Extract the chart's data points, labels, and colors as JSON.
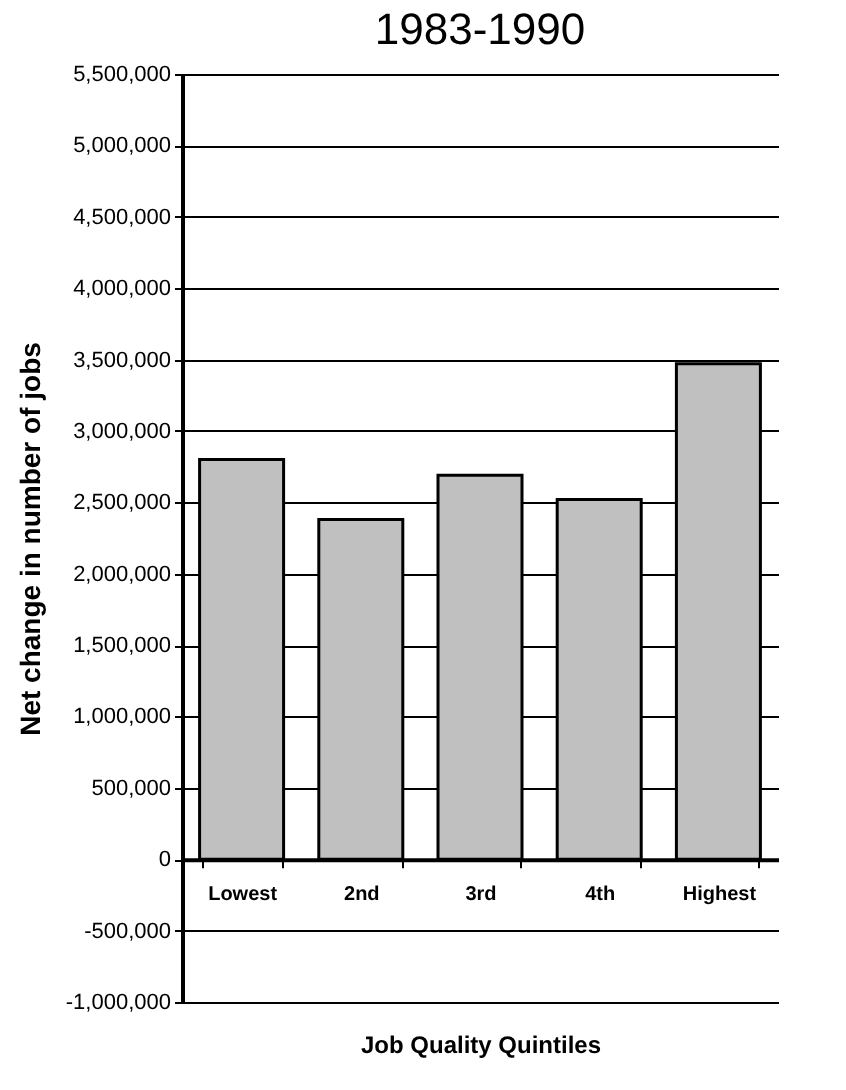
{
  "chart_data": {
    "type": "bar",
    "title": "1983-1990",
    "xlabel": "Job Quality Quintiles",
    "ylabel": "Net change in number of jobs",
    "categories": [
      "Lowest",
      "2nd",
      "3rd",
      "4th",
      "Highest"
    ],
    "values": [
      2800000,
      2380000,
      2690000,
      2520000,
      3470000
    ],
    "color": "#c0c0c0",
    "ylim": [
      -1000000,
      5500000
    ],
    "yticks": [
      {
        "value": -1000000,
        "label": "-1,000,000"
      },
      {
        "value": -500000,
        "label": "-500,000"
      },
      0,
      {
        "value": 500000,
        "label": "500,000"
      },
      {
        "value": 1000000,
        "label": "1,000,000"
      },
      {
        "value": 1500000,
        "label": "1,500,000"
      },
      {
        "value": 2000000,
        "label": "2,000,000"
      },
      {
        "value": 2500000,
        "label": "2,500,000"
      },
      {
        "value": 3000000,
        "label": "3,000,000"
      },
      {
        "value": 3500000,
        "label": "3,500,000"
      },
      {
        "value": 4000000,
        "label": "4,000,000"
      },
      {
        "value": 4500000,
        "label": "4,500,000"
      },
      {
        "value": 5000000,
        "label": "5,000,000"
      },
      {
        "value": 5500000,
        "label": "5,500,000"
      }
    ],
    "grid": "y"
  }
}
